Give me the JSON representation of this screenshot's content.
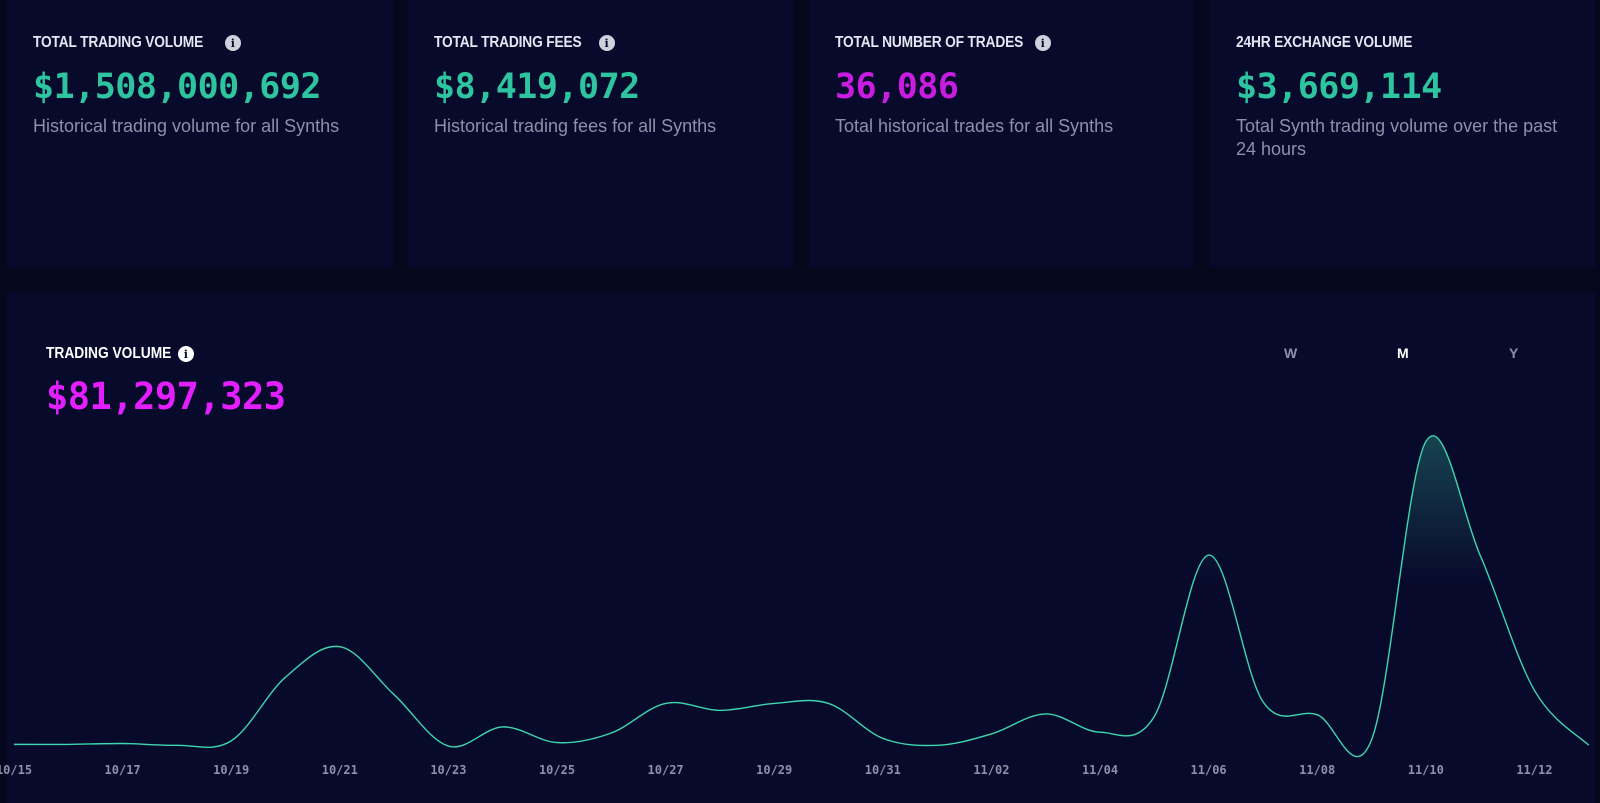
{
  "cards": [
    {
      "title": "TOTAL TRADING VOLUME",
      "has_info": true,
      "value": "$1,508,000,692",
      "value_color": "#2ec4a0",
      "desc": "Historical trading volume for all Synths"
    },
    {
      "title": "TOTAL TRADING FEES",
      "has_info": true,
      "value": "$8,419,072",
      "value_color": "#2ec4a0",
      "desc": "Historical trading fees for all Synths"
    },
    {
      "title": "TOTAL NUMBER OF TRADES",
      "has_info": true,
      "value": "36,086",
      "value_color": "#c81ce0",
      "desc": "Total historical trades for all Synths"
    },
    {
      "title": "24HR EXCHANGE VOLUME",
      "has_info": false,
      "value": "$3,669,114",
      "value_color": "#2ec4a0",
      "desc": "Total Synth trading volume over the past 24 hours"
    }
  ],
  "info_glyph": "i",
  "panel": {
    "title": "TRADING VOLUME",
    "value": "$81,297,323",
    "value_color": "#e31fff",
    "ranges": [
      {
        "label": "W",
        "active": false
      },
      {
        "label": "M",
        "active": true
      },
      {
        "label": "Y",
        "active": false
      }
    ]
  },
  "chart_data": {
    "type": "area",
    "title": "",
    "xlabel": "",
    "ylabel": "",
    "line_color": "#3ed6ae",
    "tick_labels": [
      "10/15",
      "10/17",
      "10/19",
      "10/21",
      "10/23",
      "10/25",
      "10/27",
      "10/29",
      "10/31",
      "11/02",
      "11/04",
      "11/06",
      "11/08",
      "11/10",
      "11/12"
    ],
    "x": [
      "10/15",
      "10/16",
      "10/17",
      "10/18",
      "10/19",
      "10/20",
      "10/21",
      "10/22",
      "10/23",
      "10/24",
      "10/25",
      "10/26",
      "10/27",
      "10/28",
      "10/29",
      "10/30",
      "10/31",
      "11/01",
      "11/02",
      "11/03",
      "11/04",
      "11/05",
      "11/06",
      "11/07",
      "11/08",
      "11/09",
      "11/10",
      "11/11",
      "11/12",
      "11/13"
    ],
    "series": [
      {
        "values": [
          0.3,
          0.3,
          0.4,
          0.2,
          0.7,
          8.0,
          11.5,
          6.0,
          0.1,
          2.3,
          0.5,
          1.6,
          5.0,
          4.2,
          5.0,
          5.0,
          1.0,
          0.2,
          1.5,
          3.8,
          1.7,
          3.5,
          22.0,
          5.2,
          3.7,
          0.8,
          35.0,
          22.0,
          6.5,
          0.2
        ]
      }
    ],
    "ylim": [
      0,
      36
    ],
    "grid": false,
    "legend": "none"
  }
}
